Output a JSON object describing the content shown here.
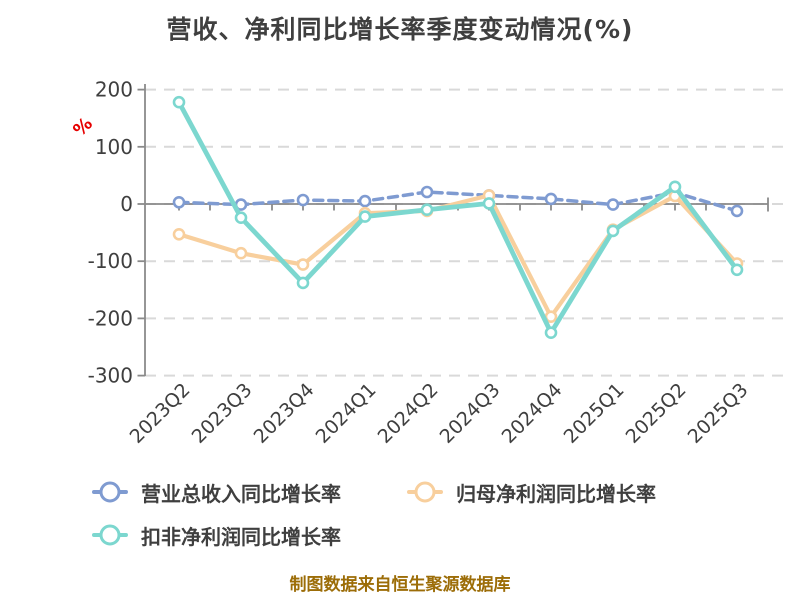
{
  "title": "营收、净利同比增长率季度变动情况(%)",
  "footer": "制图数据来自恒生聚源数据库",
  "colors": {
    "title_text": "#3f3f3f",
    "axis": "#8a8a8a",
    "grid": "#d9d9d9",
    "tick_text": "#3f3f3f",
    "ylabel_red": "#e60000",
    "footer_gold": "#9c6d08",
    "marker_fill": "#ffffff"
  },
  "chart_data": {
    "type": "line",
    "title": "营收、净利同比增长率季度变动情况(%)",
    "xlabel": "",
    "ylabel": "%",
    "ylim": [
      -300,
      200
    ],
    "yticks": [
      200,
      100,
      0,
      -100,
      -200,
      -300
    ],
    "grid": true,
    "grid_style": "dashed",
    "legend_position": "bottom",
    "categories": [
      "2023Q2",
      "2023Q3",
      "2023Q4",
      "2024Q1",
      "2024Q2",
      "2024Q3",
      "2024Q4",
      "2025Q1",
      "2025Q2",
      "2025Q3"
    ],
    "series": [
      {
        "name": "营业总收入同比增长率",
        "color": "#7f9bd1",
        "line_style": "dashed",
        "line_width": 3.5,
        "marker": "circle-white",
        "values": [
          3,
          -1,
          7,
          5,
          21,
          15,
          9,
          -1,
          20,
          -12
        ]
      },
      {
        "name": "归母净利润同比增长率",
        "color": "#f8cf9d",
        "line_style": "solid",
        "line_width": 4.2,
        "marker": "circle-white",
        "values": [
          -53,
          -86,
          -106,
          -16,
          -12,
          15,
          -197,
          -45,
          14,
          -104
        ]
      },
      {
        "name": "扣非净利润同比增长率",
        "color": "#7cd7cf",
        "line_style": "solid",
        "line_width": 4.8,
        "marker": "circle-white",
        "values": [
          178,
          -24,
          -138,
          -22,
          -10,
          1,
          -225,
          -47,
          30,
          -115
        ]
      }
    ]
  }
}
